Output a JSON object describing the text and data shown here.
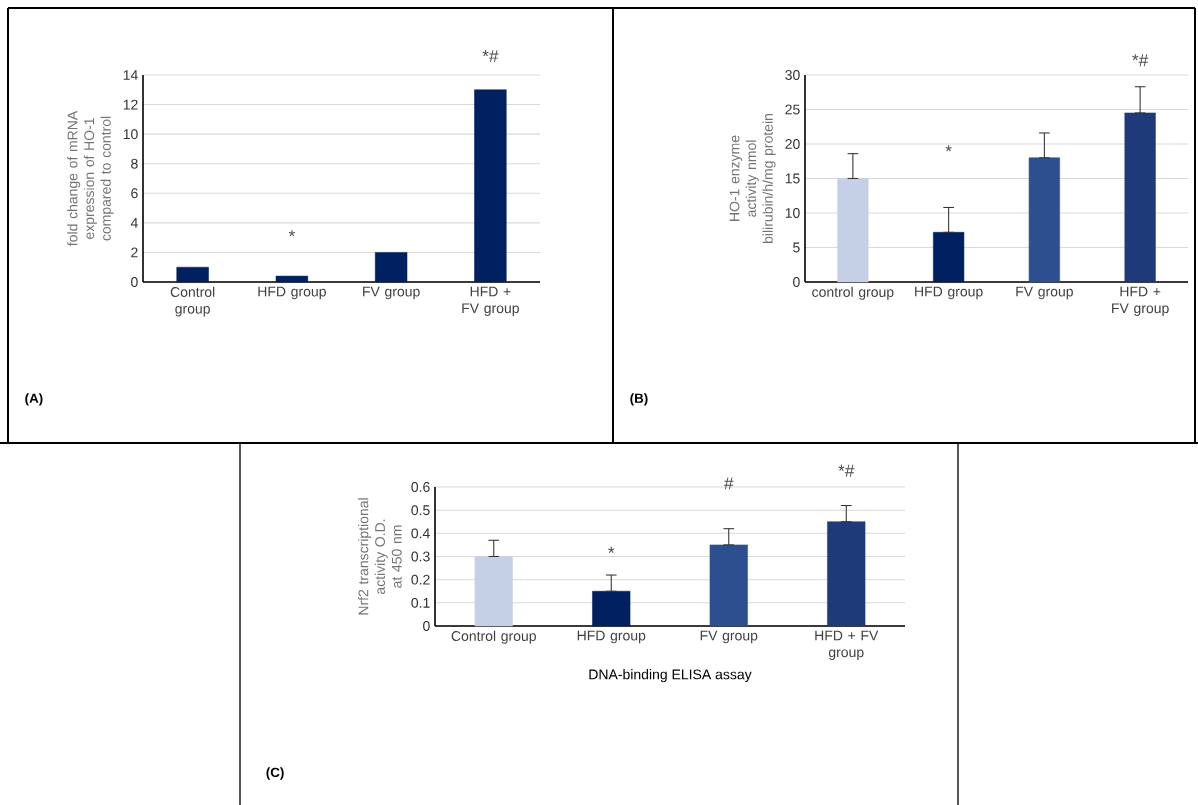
{
  "chart_data": [
    {
      "type": "bar",
      "ylabel": "fold change of mRNA expression of HO-1 compared to control",
      "categories": [
        "Control group",
        "HFD group",
        "FV group",
        "HFD + FV group"
      ],
      "values": [
        1.0,
        0.4,
        2.0,
        13.0
      ],
      "colors": [
        "#002060",
        "#002060",
        "#002060",
        "#002060"
      ],
      "ylim": [
        0,
        14
      ],
      "yticks": [
        0,
        2,
        4,
        6,
        8,
        10,
        12,
        14
      ],
      "grid": "y",
      "annotations": [
        "*",
        "*#",
        "(A)"
      ]
    },
    {
      "type": "bar",
      "ylabel": "HO-1 enzyme activity nmol bilirubin/h/mg protein",
      "categories": [
        "control group",
        "HFD group",
        "FV group",
        "HFD + FV group"
      ],
      "values": [
        15,
        7.2,
        18,
        24.5
      ],
      "colors": [
        "#c5d0e6",
        "#002060",
        "#2e4f8f",
        "#1f3a78"
      ],
      "errors": [
        [
          15,
          18.6
        ],
        [
          7.2,
          10.8
        ],
        [
          18,
          21.6
        ],
        [
          24.5,
          28.3
        ]
      ],
      "ylim": [
        0,
        30
      ],
      "yticks": [
        0,
        5,
        10,
        15,
        20,
        25,
        30
      ],
      "grid": "y",
      "annotations": [
        "*",
        "*#",
        "(B)"
      ]
    },
    {
      "type": "bar",
      "ylabel": "Nrf2 transcriptional activity O.D. at 450 nm",
      "xlabel": "DNA-binding ELISA assay",
      "categories": [
        "Control group",
        "HFD group",
        "FV group",
        "HFD + FV group"
      ],
      "values": [
        0.3,
        0.15,
        0.35,
        0.45
      ],
      "colors": [
        "#c5d0e6",
        "#002060",
        "#2e4f8f",
        "#1f3a78"
      ],
      "errors": [
        [
          0.3,
          0.37
        ],
        [
          0.15,
          0.22
        ],
        [
          0.35,
          0.42
        ],
        [
          0.45,
          0.52
        ]
      ],
      "ylim": [
        0,
        0.6
      ],
      "yticks": [
        0,
        0.1,
        0.2,
        0.3,
        0.4,
        0.5,
        0.6
      ],
      "grid": "y",
      "annotations": [
        "*",
        "#",
        "*#",
        "(C)"
      ]
    }
  ]
}
